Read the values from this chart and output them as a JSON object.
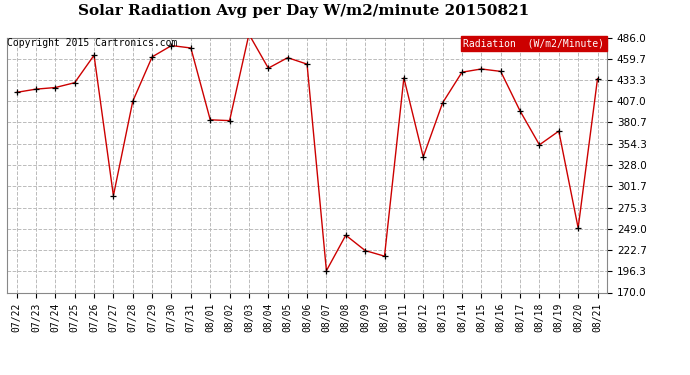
{
  "title": "Solar Radiation Avg per Day W/m2/minute 20150821",
  "copyright": "Copyright 2015 Cartronics.com",
  "legend_label": "Radiation  (W/m2/Minute)",
  "dates": [
    "07/22",
    "07/23",
    "07/24",
    "07/25",
    "07/26",
    "07/27",
    "07/28",
    "07/29",
    "07/30",
    "07/31",
    "08/01",
    "08/02",
    "08/03",
    "08/04",
    "08/05",
    "08/06",
    "08/07",
    "08/08",
    "08/09",
    "08/10",
    "08/11",
    "08/12",
    "08/13",
    "08/14",
    "08/15",
    "08/16",
    "08/17",
    "08/18",
    "08/19",
    "08/20",
    "08/21"
  ],
  "values": [
    418,
    422,
    424,
    430,
    464,
    290,
    407,
    462,
    476,
    473,
    384,
    383,
    490,
    448,
    461,
    453,
    197,
    241,
    222,
    215,
    436,
    338,
    405,
    443,
    447,
    444,
    395,
    353,
    370,
    250,
    435
  ],
  "y_ticks": [
    170.0,
    196.3,
    222.7,
    249.0,
    275.3,
    301.7,
    328.0,
    354.3,
    380.7,
    407.0,
    433.3,
    459.7,
    486.0
  ],
  "ylim": [
    170.0,
    486.0
  ],
  "line_color": "#cc0000",
  "marker_color": "#000000",
  "bg_color": "#ffffff",
  "plot_bg_color": "#ffffff",
  "grid_color": "#bbbbbb",
  "title_fontsize": 11,
  "copyright_fontsize": 7,
  "legend_bg": "#cc0000",
  "legend_text_color": "#ffffff",
  "legend_fontsize": 7
}
